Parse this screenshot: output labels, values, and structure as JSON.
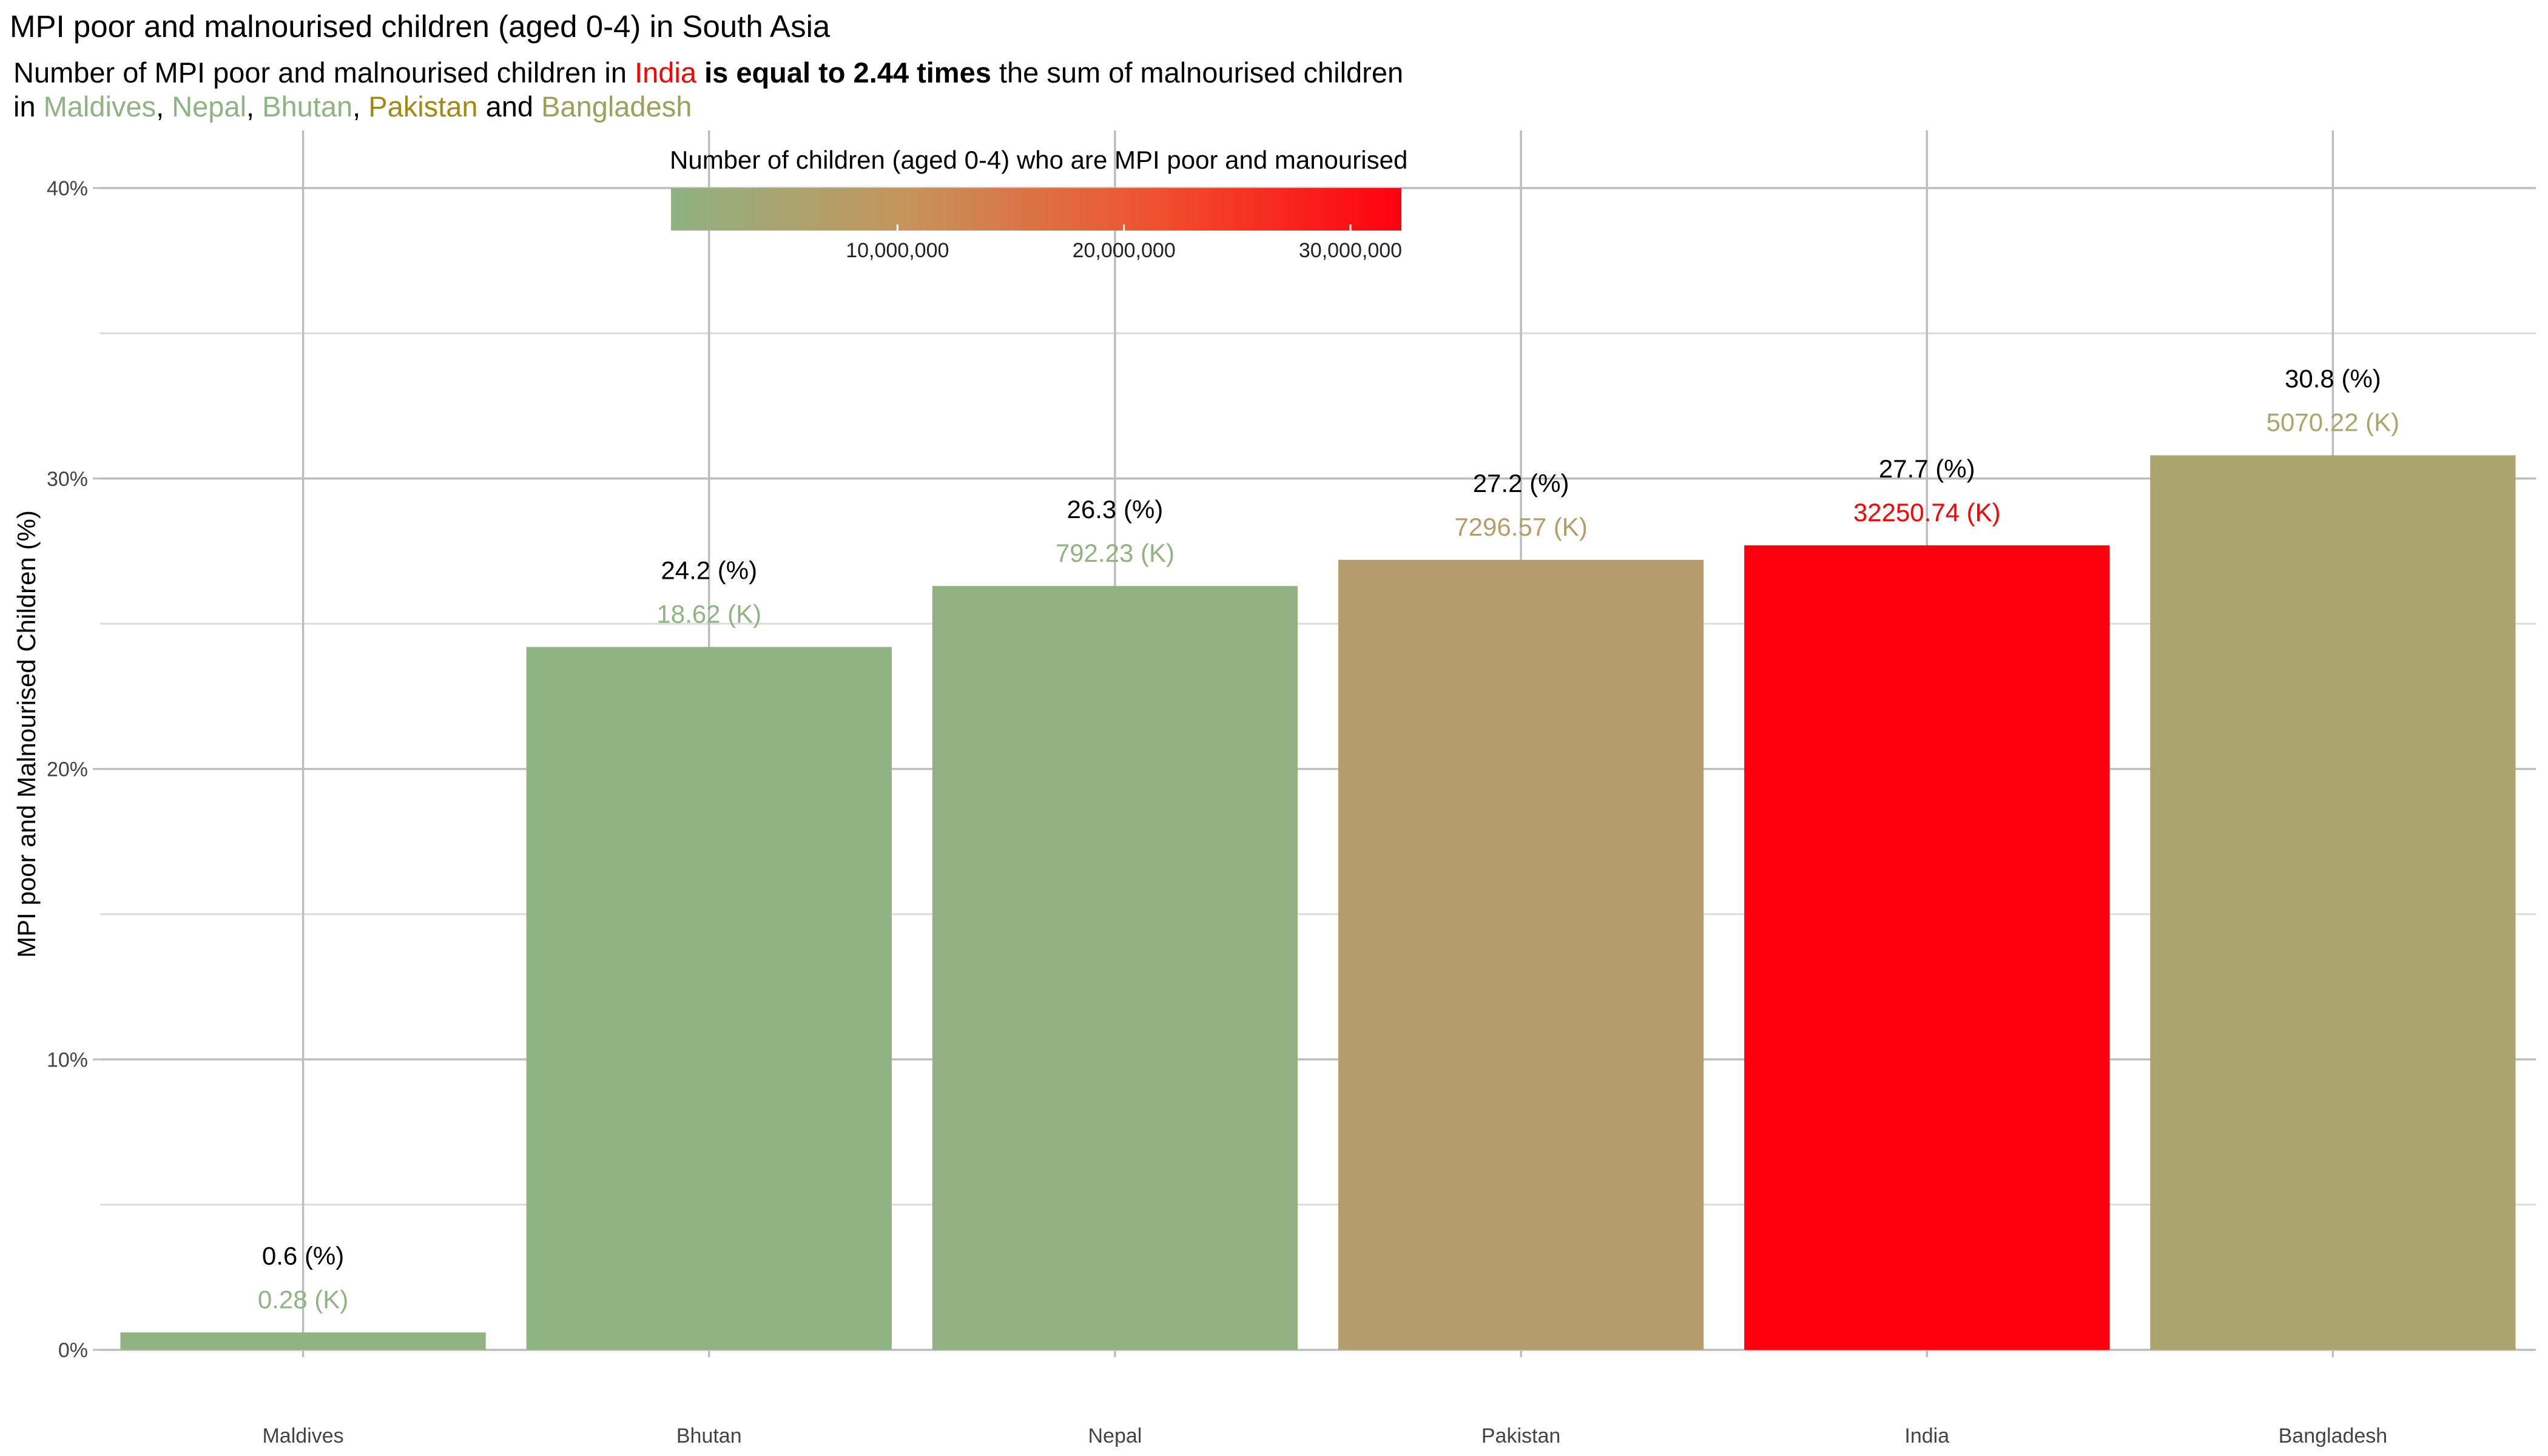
{
  "header": {
    "title": "MPI poor and malnourised children (aged 0-4) in South Asia",
    "subtitle_line1": {
      "prefix": "Number of MPI poor and malnourised children in ",
      "country": "India",
      "bold": " is equal to 2.44 times",
      "suffix": " the sum of malnourised children"
    },
    "subtitle_line2": {
      "in": "in ",
      "c1": "Maldives",
      "sep1": ", ",
      "c2": "Nepal",
      "sep2": ", ",
      "c3": "Bhutan",
      "sep3": ", ",
      "c4": "Pakistan",
      "and": " and ",
      "c5": "Bangladesh"
    }
  },
  "legend": {
    "title": "Number of children (aged 0-4) who are MPI poor and manourised",
    "tick_labels": [
      "10,000,000",
      "20,000,000",
      "30,000,000"
    ],
    "tick_values": [
      10000000,
      20000000,
      30000000
    ],
    "range": [
      6,
      32250740
    ],
    "gradient_colors": [
      "#8fb382",
      "#c8925a",
      "#f0502d",
      "#ff0010"
    ]
  },
  "chart_data": {
    "type": "bar",
    "categories": [
      "Maldives",
      "Bhutan",
      "Nepal",
      "Pakistan",
      "India",
      "Bangladesh"
    ],
    "values": [
      0.6,
      24.2,
      26.3,
      27.2,
      27.7,
      30.8
    ],
    "counts_k": [
      0.28,
      18.62,
      792.23,
      7296.57,
      32250.74,
      5070.22
    ],
    "pct_labels": [
      "0.6 (%)",
      "24.2 (%)",
      "26.3 (%)",
      "27.2 (%)",
      "27.7 (%)",
      "30.8 (%)"
    ],
    "count_labels": [
      "0.28 (K)",
      "18.62 (K)",
      "792.23 (K)",
      "7296.57 (K)",
      "32250.74 (K)",
      "5070.22 (K)"
    ],
    "colors": [
      "#8fb382",
      "#8fb382",
      "#92b281",
      "#b59d6b",
      "#ff0010",
      "#a9a56d"
    ],
    "ylabel": "MPI poor and Malnourised Children (%)",
    "ylim": [
      0,
      40
    ],
    "yticks": [
      0,
      10,
      20,
      30,
      40
    ],
    "ytick_labels": [
      "0%",
      "10%",
      "20%",
      "30%",
      "40%"
    ],
    "grid": true
  },
  "colors": {
    "india": "#ff0000",
    "maldives": "#8fb382",
    "nepal": "#8fb382",
    "bhutan": "#8fb382",
    "pakistan": "#a08a10",
    "bangladesh": "#9aa25a",
    "grid_major": "#bdbdbd",
    "grid_minor": "#dcdcdc"
  }
}
